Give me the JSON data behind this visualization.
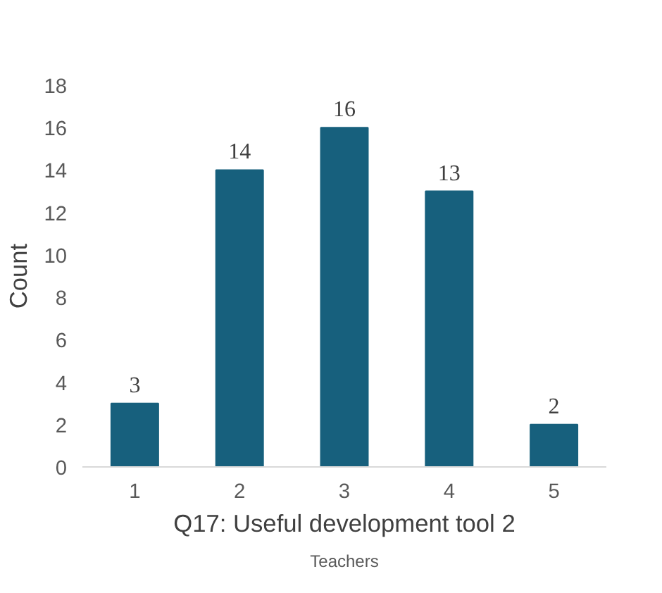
{
  "chart_data": {
    "type": "bar",
    "xlabel": "Q17: Useful development tool 2",
    "ylabel": "Count",
    "annotations": [
      "Teachers"
    ],
    "categories": [
      "1",
      "2",
      "3",
      "4",
      "5"
    ],
    "values": [
      3,
      14,
      16,
      13,
      2
    ],
    "color": "#17607d",
    "ylim": [
      0,
      18
    ],
    "yticks": [
      0,
      2,
      4,
      6,
      8,
      10,
      12,
      14,
      16,
      18
    ],
    "grid": false,
    "data_labels": true
  }
}
